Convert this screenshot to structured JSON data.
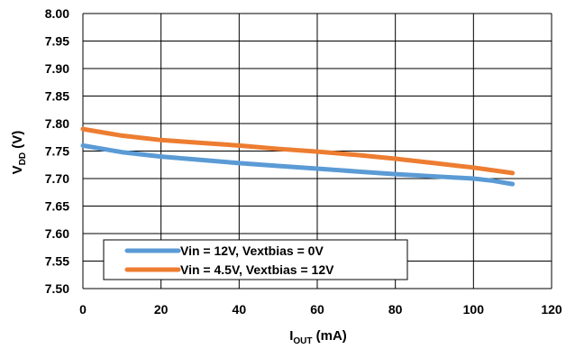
{
  "chart_data": {
    "type": "line",
    "xlabel": {
      "main": "I",
      "sub": "OUT",
      "unit": " (mA)"
    },
    "ylabel": {
      "main": "V",
      "sub": "DD",
      "unit": " (V)"
    },
    "xlim": [
      0,
      120
    ],
    "ylim": [
      7.5,
      8.0
    ],
    "x_ticks": [
      "0",
      "20",
      "40",
      "60",
      "80",
      "100",
      "120"
    ],
    "y_ticks": [
      "7.50",
      "7.55",
      "7.60",
      "7.65",
      "7.70",
      "7.75",
      "7.80",
      "7.85",
      "7.90",
      "7.95",
      "8.00"
    ],
    "grid": true,
    "legend_position": "bottom-left",
    "series": [
      {
        "name": "Vin = 12V, Vextbias = 0V",
        "color": "#5B9BD5",
        "x": [
          0,
          10,
          20,
          30,
          40,
          50,
          60,
          70,
          80,
          90,
          100,
          105,
          110
        ],
        "y": [
          7.76,
          7.748,
          7.74,
          7.734,
          7.728,
          7.723,
          7.718,
          7.713,
          7.708,
          7.704,
          7.7,
          7.696,
          7.69
        ]
      },
      {
        "name": "Vin = 4.5V, Vextbias = 12V",
        "color": "#ED7D31",
        "x": [
          0,
          10,
          20,
          30,
          40,
          50,
          60,
          70,
          80,
          90,
          100,
          110
        ],
        "y": [
          7.79,
          7.778,
          7.77,
          7.765,
          7.76,
          7.754,
          7.749,
          7.743,
          7.736,
          7.728,
          7.72,
          7.71
        ]
      }
    ]
  }
}
